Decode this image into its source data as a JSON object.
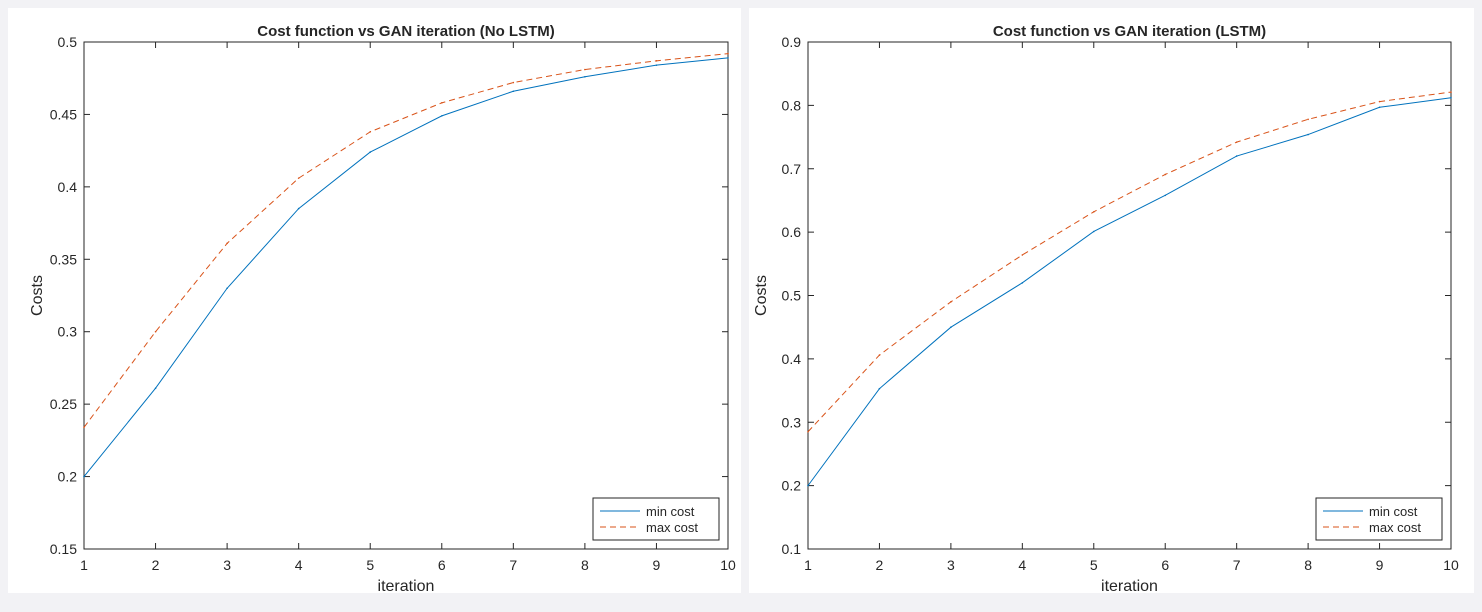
{
  "chart_data": [
    {
      "type": "line",
      "title": "Cost function vs GAN iteration (No LSTM)",
      "xlabel": "iteration",
      "ylabel": "Costs",
      "xlim": [
        1,
        10
      ],
      "ylim": [
        0.15,
        0.5
      ],
      "xticks": [
        "1",
        "2",
        "3",
        "4",
        "5",
        "6",
        "7",
        "8",
        "9",
        "10"
      ],
      "yticks": [
        "0.15",
        "0.2",
        "0.25",
        "0.3",
        "0.35",
        "0.4",
        "0.45",
        "0.5"
      ],
      "ytick_values": [
        0.15,
        0.2,
        0.25,
        0.3,
        0.35,
        0.4,
        0.45,
        0.5
      ],
      "x": [
        1,
        2,
        3,
        4,
        5,
        6,
        7,
        8,
        9,
        10
      ],
      "series": [
        {
          "name": "min cost",
          "color": "#0072BD",
          "style": "solid",
          "values": [
            0.2,
            0.261,
            0.33,
            0.385,
            0.424,
            0.449,
            0.466,
            0.476,
            0.484,
            0.489
          ]
        },
        {
          "name": "max cost",
          "color": "#D95319",
          "style": "dashed",
          "values": [
            0.234,
            0.3,
            0.361,
            0.406,
            0.438,
            0.458,
            0.472,
            0.481,
            0.487,
            0.492
          ]
        }
      ],
      "grid": false,
      "legend_position": "bottom-right"
    },
    {
      "type": "line",
      "title": "Cost function vs GAN iteration (LSTM)",
      "xlabel": "iteration",
      "ylabel": "Costs",
      "xlim": [
        1,
        10
      ],
      "ylim": [
        0.1,
        0.9
      ],
      "xticks": [
        "1",
        "2",
        "3",
        "4",
        "5",
        "6",
        "7",
        "8",
        "9",
        "10"
      ],
      "yticks": [
        "0.1",
        "0.2",
        "0.3",
        "0.4",
        "0.5",
        "0.6",
        "0.7",
        "0.8",
        "0.9"
      ],
      "ytick_values": [
        0.1,
        0.2,
        0.3,
        0.4,
        0.5,
        0.6,
        0.7,
        0.8,
        0.9
      ],
      "x": [
        1,
        2,
        3,
        4,
        5,
        6,
        7,
        8,
        9,
        10
      ],
      "series": [
        {
          "name": "min cost",
          "color": "#0072BD",
          "style": "solid",
          "values": [
            0.2,
            0.353,
            0.45,
            0.52,
            0.601,
            0.658,
            0.72,
            0.754,
            0.797,
            0.812
          ]
        },
        {
          "name": "max cost",
          "color": "#D95319",
          "style": "dashed",
          "values": [
            0.285,
            0.406,
            0.49,
            0.564,
            0.632,
            0.691,
            0.742,
            0.778,
            0.806,
            0.821
          ]
        }
      ],
      "grid": false,
      "legend_position": "bottom-right"
    }
  ]
}
